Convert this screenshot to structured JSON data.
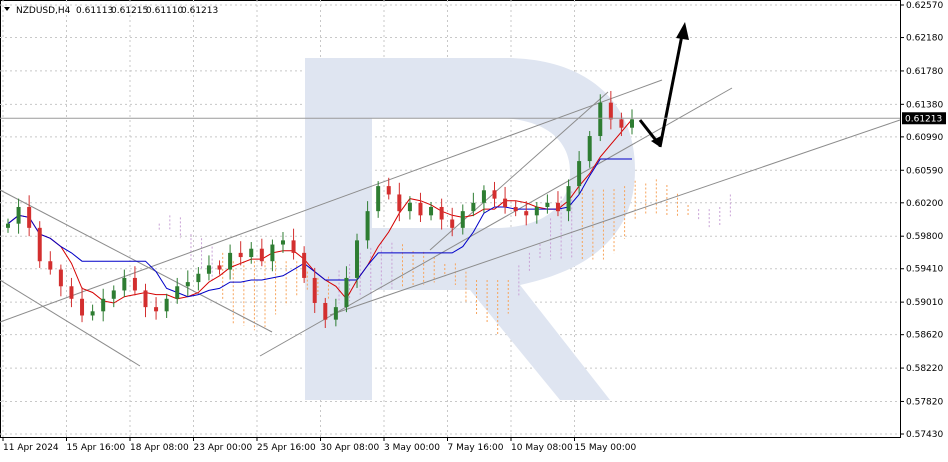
{
  "header": {
    "symbol": "NZDUSD,H4",
    "open": "0.61113",
    "high": "0.61215",
    "low": "0.61110",
    "close": "0.61213"
  },
  "price_axis": {
    "ticks": [
      "0.62570",
      "0.62180",
      "0.61780",
      "0.61380",
      "0.60990",
      "0.60590",
      "0.60200",
      "0.59800",
      "0.59410",
      "0.59010",
      "0.58620",
      "0.58220",
      "0.57820",
      "0.57430"
    ],
    "current_price": "0.61213",
    "current_price_color": "#000000"
  },
  "time_axis": {
    "ticks": [
      "11 Apr 2024",
      "15 Apr 16:00",
      "18 Apr 08:00",
      "23 Apr 00:00",
      "25 Apr 16:00",
      "30 Apr 08:00",
      "3 May 00:00",
      "7 May 16:00",
      "10 May 08:00",
      "15 May 00:00"
    ]
  },
  "colors": {
    "bull_candle": "#2e7d32",
    "bear_candle": "#d32f2f",
    "tenkan": "#d50000",
    "kijun": "#0000c8",
    "cloud": "#f7a45c",
    "cloud_alt": "#c9a2d6",
    "trendline": "#8c8c8c",
    "arrow": "#000000",
    "watermark": "#dfe5f1"
  },
  "chart_data": {
    "type": "candlestick",
    "title": "NZDUSD,H4",
    "ylim": [
      0.5743,
      0.6257
    ],
    "indicators": [
      "Ichimoku Kinko Hyo"
    ],
    "grid": true,
    "candles_close": [
      0.5995,
      0.6015,
      0.599,
      0.595,
      0.594,
      0.592,
      0.5905,
      0.5885,
      0.589,
      0.5905,
      0.5915,
      0.593,
      0.5915,
      0.5895,
      0.589,
      0.5905,
      0.592,
      0.5925,
      0.5935,
      0.5945,
      0.594,
      0.596,
      0.5955,
      0.5965,
      0.595,
      0.597,
      0.5975,
      0.596,
      0.593,
      0.59,
      0.588,
      0.5895,
      0.593,
      0.5975,
      0.601,
      0.604,
      0.603,
      0.601,
      0.602,
      0.6005,
      0.6015,
      0.6,
      0.599,
      0.601,
      0.602,
      0.6035,
      0.6025,
      0.6015,
      0.601,
      0.6005,
      0.6015,
      0.602,
      0.601,
      0.604,
      0.607,
      0.61,
      0.614,
      0.612,
      0.611,
      0.612
    ],
    "forecast": {
      "pullback_to": 0.6085,
      "target": 0.625
    }
  }
}
